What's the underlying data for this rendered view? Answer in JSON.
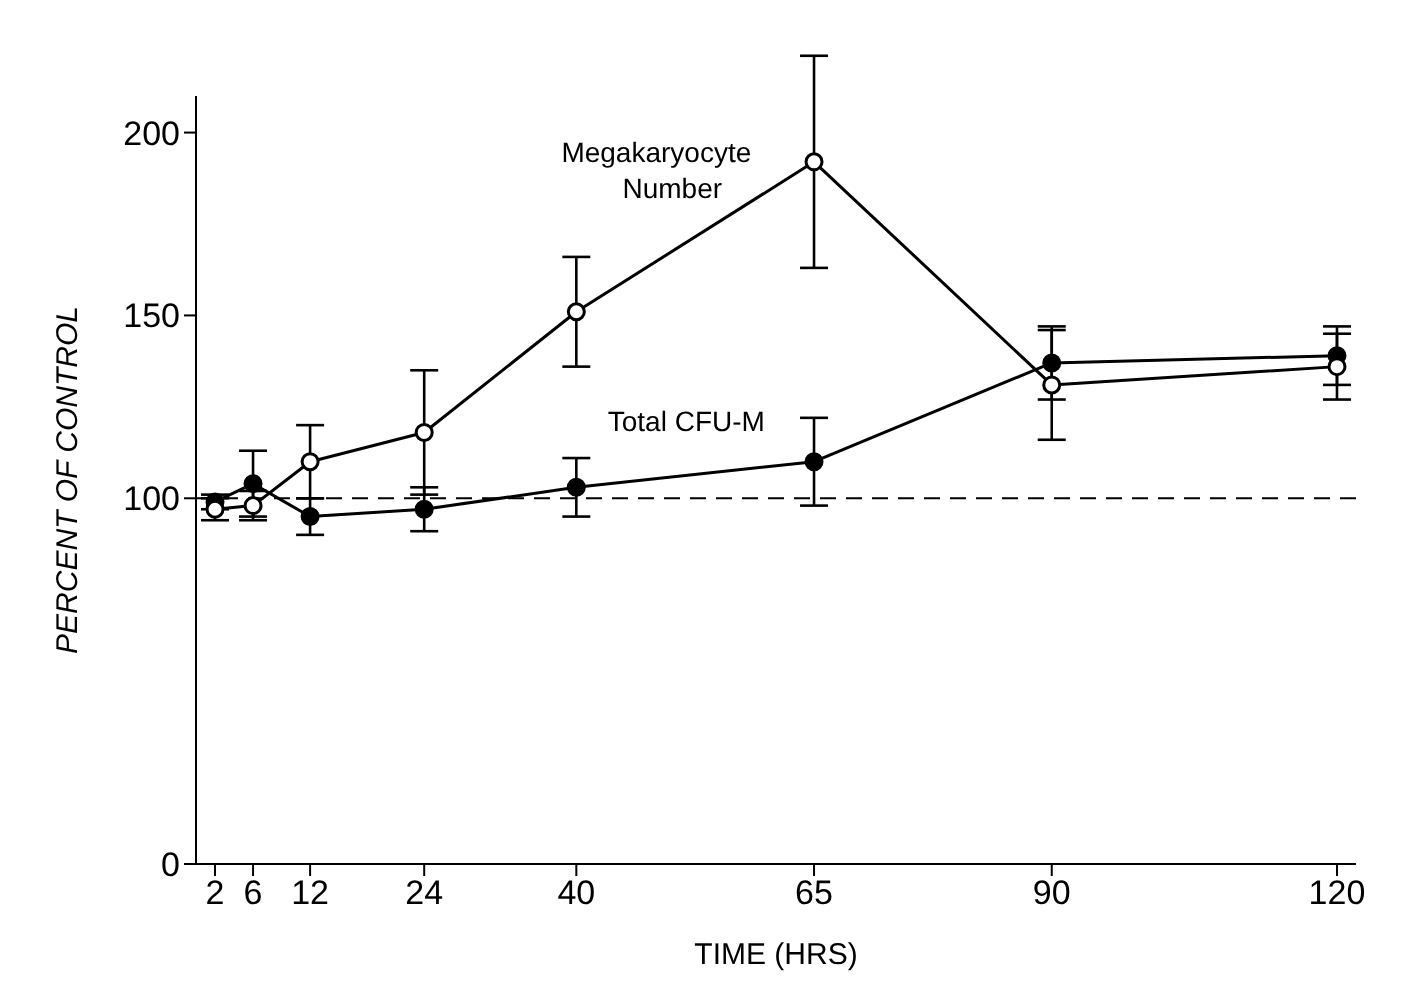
{
  "chart_data": {
    "type": "line",
    "xlabel": "TIME (HRS)",
    "ylabel": "PERCENT OF CONTROL",
    "x": [
      2,
      6,
      12,
      24,
      40,
      65,
      90,
      120
    ],
    "series": [
      {
        "name": "Megakaryocyte Number",
        "color": "#000000",
        "values": [
          97,
          98,
          110,
          118,
          151,
          192,
          131,
          136
        ],
        "errors": [
          3,
          4,
          10,
          17,
          15,
          29,
          15,
          9
        ]
      },
      {
        "name": "Total CFU-M",
        "color": "#000000",
        "values": [
          99,
          104,
          95,
          97,
          103,
          110,
          137,
          139
        ],
        "errors": [
          2,
          9,
          5,
          6,
          8,
          12,
          10,
          8
        ]
      }
    ],
    "xlim": [
      0,
      122
    ],
    "xticks": [
      2,
      6,
      12,
      24,
      40,
      65,
      90,
      120
    ],
    "ylim": [
      0,
      210
    ],
    "yticks": [
      0,
      100,
      150,
      200
    ],
    "ref_lines": [
      {
        "axis": "y",
        "value": 100,
        "color": "#000000",
        "line_style": "dashed"
      }
    ],
    "marker": "circle",
    "line_style": "solid",
    "grid": false,
    "legend": false
  }
}
